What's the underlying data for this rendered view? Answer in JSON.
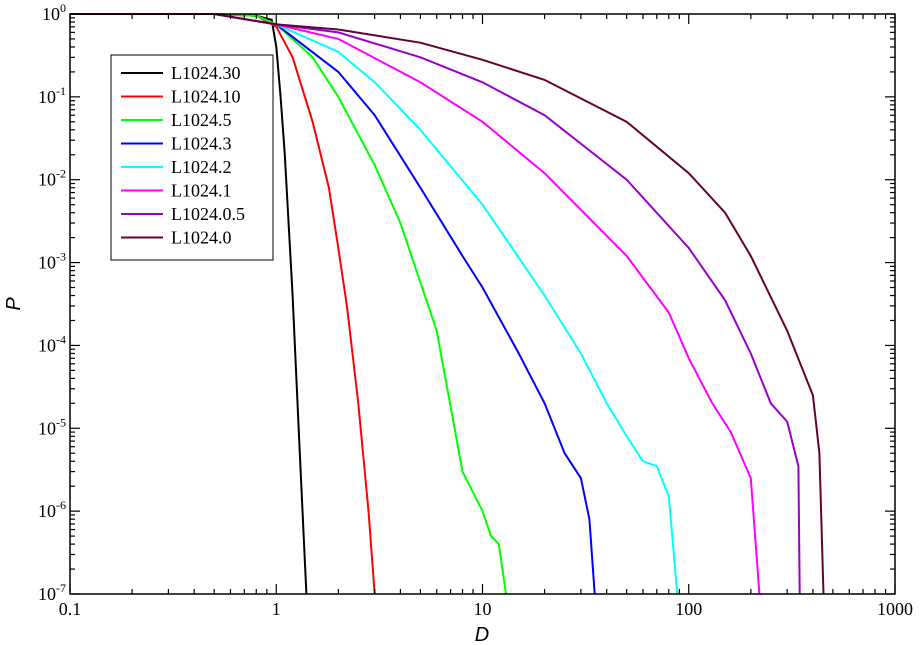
{
  "chart_data": {
    "type": "line",
    "xlabel": "D",
    "ylabel": "P",
    "x_scale": "log",
    "y_scale": "log",
    "xlim": [
      0.1,
      1000
    ],
    "ylim": [
      1e-07,
      1
    ],
    "x_ticks": [
      {
        "value": 0.1,
        "label": "0.1"
      },
      {
        "value": 1,
        "label": "1"
      },
      {
        "value": 10,
        "label": "10"
      },
      {
        "value": 100,
        "label": "100"
      },
      {
        "value": 1000,
        "label": "1000"
      }
    ],
    "y_ticks": [
      {
        "value": 1,
        "base": "10",
        "exp": "0"
      },
      {
        "value": 0.1,
        "base": "10",
        "exp": "-1"
      },
      {
        "value": 0.01,
        "base": "10",
        "exp": "-2"
      },
      {
        "value": 0.001,
        "base": "10",
        "exp": "-3"
      },
      {
        "value": 0.0001,
        "base": "10",
        "exp": "-4"
      },
      {
        "value": 1e-05,
        "base": "10",
        "exp": "-5"
      },
      {
        "value": 1e-06,
        "base": "10",
        "exp": "-6"
      },
      {
        "value": 1e-07,
        "base": "10",
        "exp": "-7"
      }
    ],
    "grid": false,
    "legend_position": "top-left",
    "series": [
      {
        "name": "L1024.30",
        "color": "#000000",
        "x": [
          0.1,
          0.5,
          0.8,
          0.95,
          1.0,
          1.05,
          1.1,
          1.2,
          1.3,
          1.4
        ],
        "y": [
          1,
          1,
          0.95,
          0.85,
          0.4,
          0.1,
          0.02,
          0.0004,
          5e-06,
          1e-07
        ]
      },
      {
        "name": "L1024.10",
        "color": "#ff0000",
        "x": [
          0.1,
          0.5,
          0.8,
          1.0,
          1.2,
          1.5,
          1.8,
          2.0,
          2.2,
          2.5,
          2.8,
          3.0
        ],
        "y": [
          1,
          1,
          0.95,
          0.7,
          0.3,
          0.05,
          0.008,
          0.0015,
          0.0003,
          2e-05,
          1e-06,
          1e-07
        ]
      },
      {
        "name": "L1024.5",
        "color": "#00ff00",
        "x": [
          0.1,
          0.5,
          0.8,
          1.0,
          1.5,
          2.0,
          3.0,
          4.0,
          6.0,
          8.0,
          10,
          11,
          12,
          13
        ],
        "y": [
          1,
          1,
          0.95,
          0.75,
          0.3,
          0.1,
          0.015,
          0.003,
          0.00015,
          3e-06,
          1e-06,
          5e-07,
          4e-07,
          1e-07
        ]
      },
      {
        "name": "L1024.3",
        "color": "#0000ff",
        "x": [
          0.1,
          0.5,
          1.0,
          2.0,
          3.0,
          5.0,
          8.0,
          10,
          15,
          20,
          25,
          30,
          33,
          35
        ],
        "y": [
          1,
          1,
          0.75,
          0.2,
          0.06,
          0.008,
          0.0012,
          0.0005,
          8e-05,
          2e-05,
          5e-06,
          2.5e-06,
          8e-07,
          1e-07
        ]
      },
      {
        "name": "L1024.2",
        "color": "#00ffff",
        "x": [
          0.1,
          0.5,
          1.0,
          2.0,
          3.0,
          5.0,
          10,
          20,
          30,
          40,
          50,
          60,
          70,
          80,
          88
        ],
        "y": [
          1,
          1,
          0.75,
          0.35,
          0.15,
          0.04,
          0.005,
          0.0004,
          8e-05,
          2e-05,
          8e-06,
          4e-06,
          3.5e-06,
          1.5e-06,
          1e-07
        ]
      },
      {
        "name": "L1024.1",
        "color": "#ff00ff",
        "x": [
          0.1,
          0.5,
          1.0,
          2.0,
          5.0,
          10,
          20,
          50,
          80,
          100,
          130,
          160,
          200,
          220
        ],
        "y": [
          1,
          1,
          0.75,
          0.5,
          0.15,
          0.05,
          0.012,
          0.0012,
          0.00025,
          7e-05,
          2e-05,
          9e-06,
          2.5e-06,
          1e-07
        ]
      },
      {
        "name": "L1024.0.5",
        "color": "#9900cc",
        "x": [
          0.1,
          0.5,
          1.0,
          2.0,
          5.0,
          10,
          20,
          50,
          100,
          150,
          200,
          250,
          300,
          340,
          345
        ],
        "y": [
          1,
          1,
          0.75,
          0.6,
          0.3,
          0.15,
          0.06,
          0.01,
          0.0015,
          0.00035,
          8e-05,
          2e-05,
          1.2e-05,
          3.5e-06,
          1e-07
        ]
      },
      {
        "name": "L1024.0",
        "color": "#660033",
        "x": [
          0.1,
          0.5,
          1.0,
          2.0,
          5.0,
          10,
          20,
          50,
          100,
          150,
          200,
          300,
          400,
          430,
          450
        ],
        "y": [
          1,
          1,
          0.75,
          0.65,
          0.45,
          0.28,
          0.16,
          0.05,
          0.012,
          0.004,
          0.0012,
          0.00015,
          2.5e-05,
          5e-06,
          1e-07
        ]
      }
    ]
  }
}
